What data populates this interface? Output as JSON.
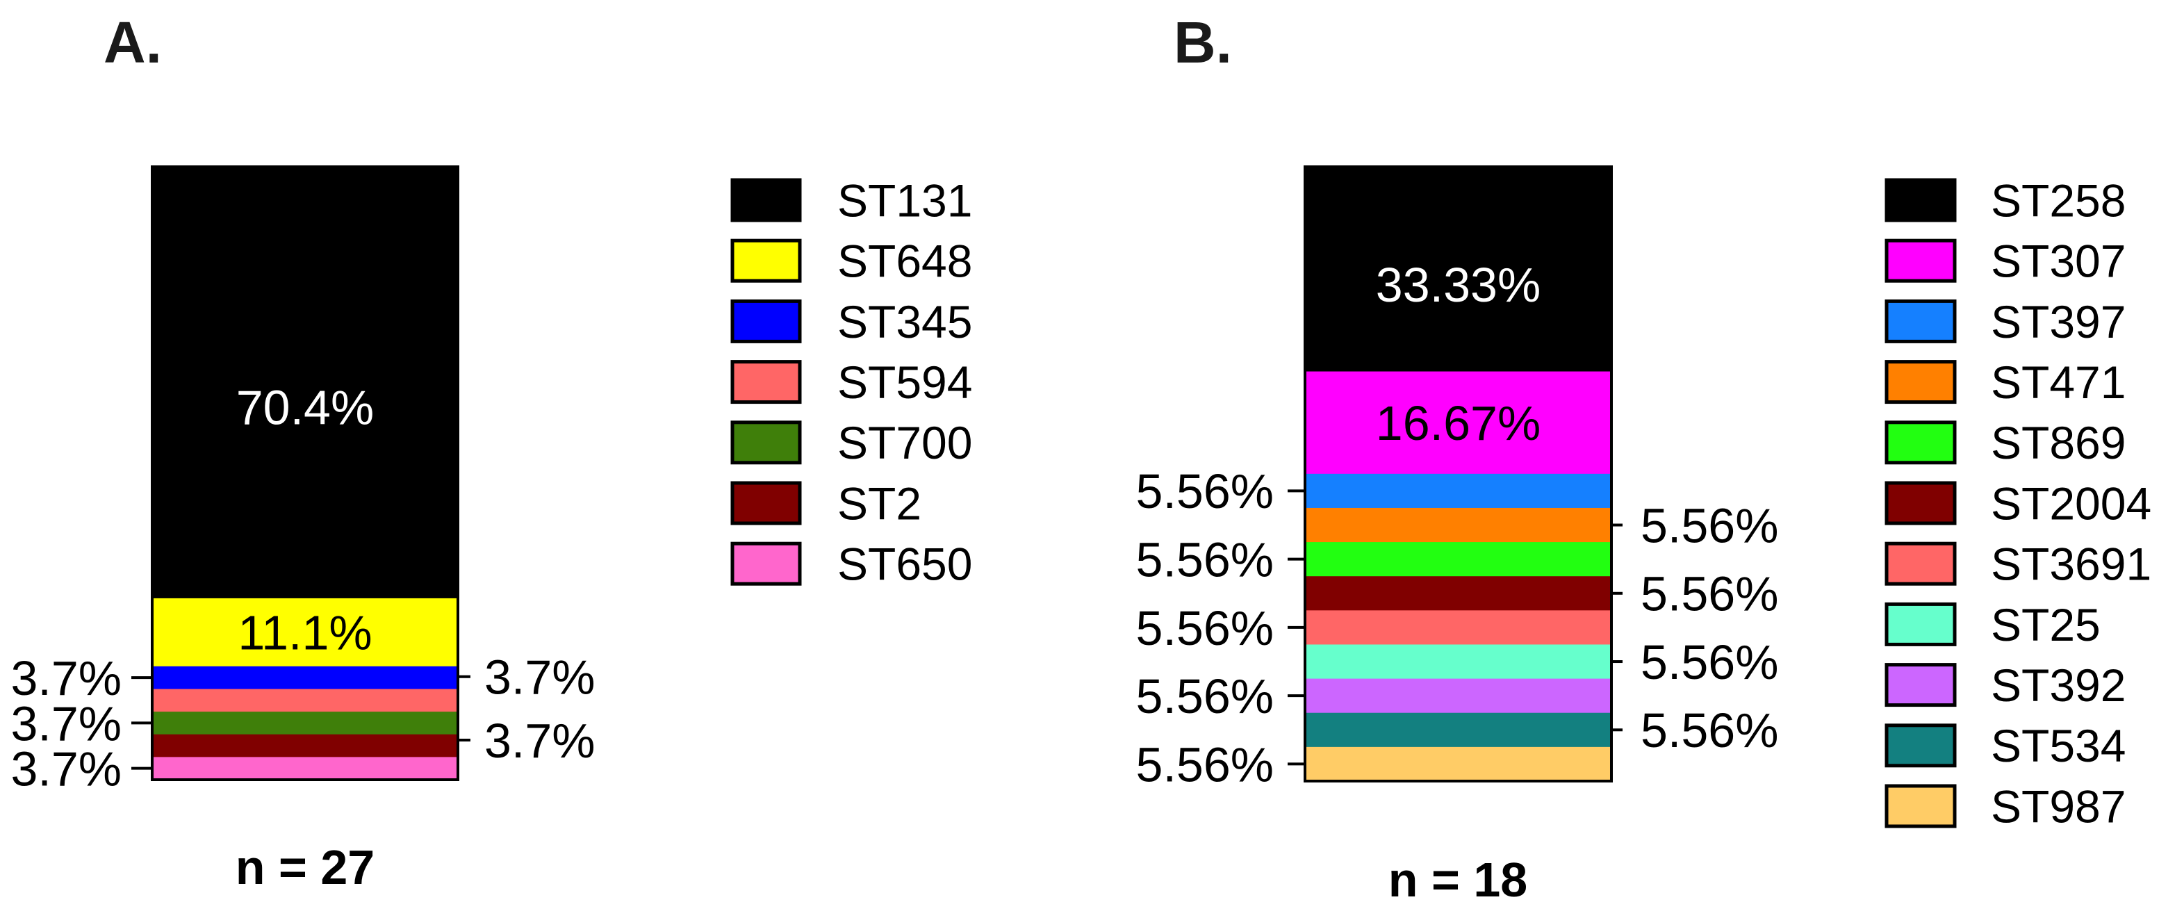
{
  "chart_data": [
    {
      "type": "bar",
      "stacked": true,
      "panel_label": "A.",
      "n_label": "n = 27",
      "ylim": [
        0,
        100
      ],
      "series": [
        {
          "name": "ST131",
          "value": 70.4,
          "label": "70.4%",
          "label_position": "inside",
          "color": "#000000",
          "label_color": "#FFFFFF"
        },
        {
          "name": "ST648",
          "value": 11.1,
          "label": "11.1%",
          "label_position": "inside",
          "color": "#FFFF00",
          "label_color": "#000000"
        },
        {
          "name": "ST345",
          "value": 3.7,
          "label": "3.7%",
          "label_position": "left",
          "color": "#0000FF",
          "label_color": "#000000"
        },
        {
          "name": "ST594",
          "value": 3.7,
          "label": "3.7%",
          "label_position": "right",
          "color": "#FF6666",
          "label_color": "#000000"
        },
        {
          "name": "ST700",
          "value": 3.7,
          "label": "3.7%",
          "label_position": "left",
          "color": "#3F7F0A",
          "label_color": "#000000"
        },
        {
          "name": "ST2",
          "value": 3.7,
          "label": "3.7%",
          "label_position": "right",
          "color": "#800000",
          "label_color": "#000000"
        },
        {
          "name": "ST650",
          "value": 3.7,
          "label": "3.7%",
          "label_position": "left",
          "color": "#FF66CC",
          "label_color": "#000000"
        }
      ]
    },
    {
      "type": "bar",
      "stacked": true,
      "panel_label": "B.",
      "n_label": "n = 18",
      "ylim": [
        0,
        100
      ],
      "series": [
        {
          "name": "ST258",
          "value": 33.33,
          "label": "33.33%",
          "label_position": "inside",
          "color": "#000000",
          "label_color": "#FFFFFF"
        },
        {
          "name": "ST307",
          "value": 16.67,
          "label": "16.67%",
          "label_position": "inside",
          "color": "#FF00FF",
          "label_color": "#000000"
        },
        {
          "name": "ST397",
          "value": 5.56,
          "label": "5.56%",
          "label_position": "left",
          "color": "#1580FF",
          "label_color": "#000000"
        },
        {
          "name": "ST471",
          "value": 5.56,
          "label": "5.56%",
          "label_position": "right",
          "color": "#FF8000",
          "label_color": "#000000"
        },
        {
          "name": "ST869",
          "value": 5.56,
          "label": "5.56%",
          "label_position": "left",
          "color": "#22FF11",
          "label_color": "#000000"
        },
        {
          "name": "ST2004",
          "value": 5.56,
          "label": "5.56%",
          "label_position": "right",
          "color": "#800000",
          "label_color": "#000000"
        },
        {
          "name": "ST3691",
          "value": 5.56,
          "label": "5.56%",
          "label_position": "left",
          "color": "#FF6666",
          "label_color": "#000000"
        },
        {
          "name": "ST25",
          "value": 5.56,
          "label": "5.56%",
          "label_position": "right",
          "color": "#66FFCC",
          "label_color": "#000000"
        },
        {
          "name": "ST392",
          "value": 5.56,
          "label": "5.56%",
          "label_position": "left",
          "color": "#CC66FF",
          "label_color": "#000000"
        },
        {
          "name": "ST534",
          "value": 5.56,
          "label": "5.56%",
          "label_position": "right",
          "color": "#138080",
          "label_color": "#000000"
        },
        {
          "name": "ST987",
          "value": 5.56,
          "label": "5.56%",
          "label_position": "left",
          "color": "#FFCC66",
          "label_color": "#000000"
        }
      ]
    }
  ]
}
